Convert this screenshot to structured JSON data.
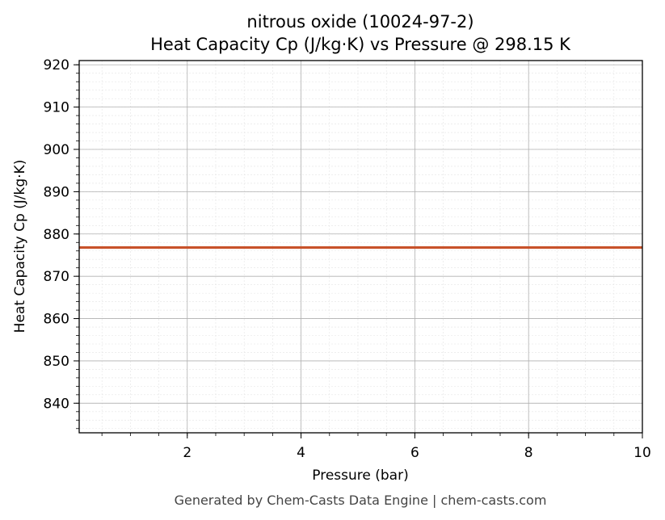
{
  "chart_data": {
    "type": "line",
    "title": "nitrous oxide (10024-97-2)",
    "subtitle": "Heat Capacity Cp (J/kg·K) vs Pressure @ 298.15 K",
    "xlabel": "Pressure (bar)",
    "ylabel": "Heat Capacity Cp (J/kg·K)",
    "xlim": [
      0.1,
      10
    ],
    "ylim": [
      833,
      921
    ],
    "x_ticks": [
      2,
      4,
      6,
      8,
      10
    ],
    "y_ticks": [
      840,
      850,
      860,
      870,
      880,
      890,
      900,
      910,
      920
    ],
    "grid": true,
    "series": [
      {
        "color": "#c8522a",
        "x": [
          0.1,
          1,
          2,
          3,
          4,
          5,
          6,
          7,
          8,
          9,
          10
        ],
        "y": [
          876.8,
          876.8,
          876.8,
          876.8,
          876.8,
          876.8,
          876.8,
          876.8,
          876.8,
          876.8,
          876.8
        ]
      }
    ]
  },
  "footer": "Generated by Chem-Casts Data Engine | chem-casts.com"
}
